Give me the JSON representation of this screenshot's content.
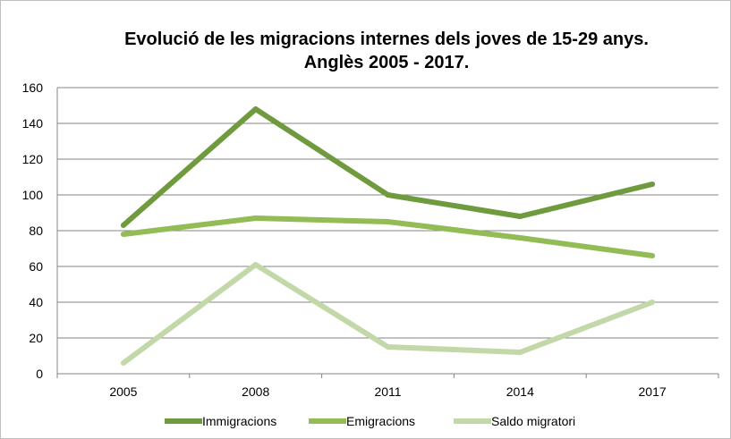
{
  "chart_data": {
    "type": "line",
    "title": "Evolució de les migracions internes dels joves de 15-29 anys.",
    "subtitle": "Anglès 2005 - 2017.",
    "categories": [
      "2005",
      "2008",
      "2011",
      "2014",
      "2017"
    ],
    "ylim": [
      0,
      160
    ],
    "yticks": [
      0,
      20,
      40,
      60,
      80,
      100,
      120,
      140,
      160
    ],
    "grid": true,
    "legend_position": "bottom",
    "series": [
      {
        "name": "Immigracions",
        "color": "#6f9a3e",
        "values": [
          83,
          148,
          100,
          88,
          106
        ]
      },
      {
        "name": "Emigracions",
        "color": "#92bc55",
        "values": [
          78,
          87,
          85,
          76,
          66
        ]
      },
      {
        "name": "Saldo migratori",
        "color": "#c3d8a8",
        "values": [
          6,
          61,
          15,
          12,
          40
        ]
      }
    ]
  }
}
